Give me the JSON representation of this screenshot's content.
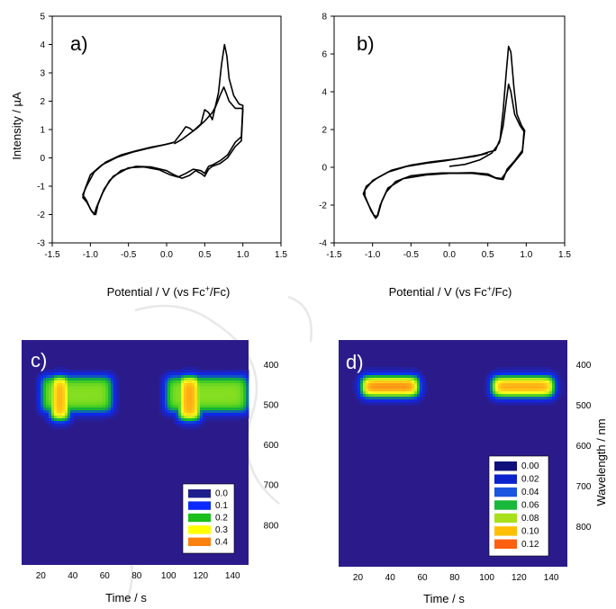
{
  "chart_data": [
    {
      "id": "a",
      "type": "line",
      "panel_label": "a)",
      "xlabel": "",
      "ylabel": "Intensity / µA",
      "xlim": [
        -1.5,
        1.5
      ],
      "ylim": [
        -3,
        5
      ],
      "xticks": [
        "-1.5",
        "-1.0",
        "-0.5",
        "0.0",
        "0.5",
        "1.0",
        "1.5"
      ],
      "xtick_values": [
        -1.5,
        -1.0,
        -0.5,
        0.0,
        0.5,
        1.0,
        1.5
      ],
      "yticks": [
        "-3",
        "-2",
        "-1",
        "0",
        "1",
        "2",
        "3",
        "4",
        "5"
      ],
      "ytick_values": [
        -3,
        -2,
        -1,
        0,
        1,
        2,
        3,
        4,
        5
      ],
      "series": [
        {
          "values": [
            [
              0.1,
              0.5
            ],
            [
              0.2,
              0.65
            ],
            [
              0.3,
              0.85
            ],
            [
              0.4,
              1.05
            ],
            [
              0.5,
              1.3
            ],
            [
              0.6,
              1.6
            ],
            [
              0.65,
              1.85
            ],
            [
              0.7,
              2.2
            ],
            [
              0.75,
              2.5
            ],
            [
              0.78,
              2.3
            ],
            [
              0.82,
              2.0
            ],
            [
              0.9,
              1.75
            ],
            [
              0.98,
              1.75
            ],
            [
              1.0,
              1.7
            ],
            [
              0.98,
              0.6
            ],
            [
              0.9,
              0.4
            ],
            [
              0.8,
              0.0
            ],
            [
              0.7,
              -0.2
            ],
            [
              0.6,
              -0.3
            ],
            [
              0.55,
              -0.4
            ],
            [
              0.5,
              -0.65
            ],
            [
              0.45,
              -0.55
            ],
            [
              0.38,
              -0.45
            ],
            [
              0.3,
              -0.62
            ],
            [
              0.2,
              -0.72
            ],
            [
              0.1,
              -0.6
            ],
            [
              0.0,
              -0.45
            ],
            [
              -0.2,
              -0.32
            ],
            [
              -0.4,
              -0.3
            ],
            [
              -0.6,
              -0.45
            ],
            [
              -0.75,
              -0.8
            ],
            [
              -0.85,
              -1.3
            ],
            [
              -0.92,
              -1.75
            ],
            [
              -0.95,
              -2.0
            ],
            [
              -1.0,
              -1.8
            ],
            [
              -1.05,
              -1.5
            ],
            [
              -1.1,
              -1.3
            ],
            [
              -1.05,
              -1.0
            ],
            [
              -0.95,
              -0.5
            ],
            [
              -0.8,
              -0.15
            ],
            [
              -0.6,
              0.1
            ],
            [
              -0.4,
              0.25
            ],
            [
              -0.2,
              0.38
            ],
            [
              0.0,
              0.48
            ],
            [
              0.1,
              0.55
            ]
          ]
        },
        {
          "values": [
            [
              0.1,
              0.55
            ],
            [
              0.2,
              0.9
            ],
            [
              0.25,
              1.1
            ],
            [
              0.3,
              1.05
            ],
            [
              0.35,
              0.95
            ],
            [
              0.45,
              1.2
            ],
            [
              0.5,
              1.7
            ],
            [
              0.55,
              1.6
            ],
            [
              0.6,
              1.35
            ],
            [
              0.68,
              2.3
            ],
            [
              0.72,
              3.3
            ],
            [
              0.76,
              4.0
            ],
            [
              0.79,
              3.6
            ],
            [
              0.82,
              2.8
            ],
            [
              0.88,
              2.2
            ],
            [
              0.95,
              1.9
            ],
            [
              1.0,
              1.85
            ],
            [
              0.98,
              0.75
            ],
            [
              0.9,
              0.55
            ],
            [
              0.8,
              0.1
            ],
            [
              0.7,
              -0.1
            ],
            [
              0.6,
              -0.25
            ],
            [
              0.55,
              -0.3
            ],
            [
              0.5,
              -0.55
            ],
            [
              0.45,
              -0.45
            ],
            [
              0.35,
              -0.4
            ],
            [
              0.25,
              -0.55
            ],
            [
              0.15,
              -0.68
            ],
            [
              0.05,
              -0.6
            ],
            [
              -0.1,
              -0.42
            ],
            [
              -0.3,
              -0.32
            ],
            [
              -0.5,
              -0.35
            ],
            [
              -0.7,
              -0.65
            ],
            [
              -0.82,
              -1.1
            ],
            [
              -0.9,
              -1.65
            ],
            [
              -0.93,
              -2.0
            ],
            [
              -0.98,
              -1.9
            ],
            [
              -1.05,
              -1.55
            ],
            [
              -1.1,
              -1.4
            ],
            [
              -1.07,
              -1.1
            ],
            [
              -1.0,
              -0.6
            ],
            [
              -0.85,
              -0.25
            ],
            [
              -0.65,
              0.02
            ],
            [
              -0.45,
              0.2
            ],
            [
              -0.25,
              0.33
            ],
            [
              -0.05,
              0.45
            ],
            [
              0.1,
              0.55
            ]
          ]
        }
      ]
    },
    {
      "id": "b",
      "type": "line",
      "panel_label": "b)",
      "xlabel": "",
      "ylabel": "",
      "xlim": [
        -1.5,
        1.5
      ],
      "ylim": [
        -4,
        8
      ],
      "xticks": [
        "-1.5",
        "-1.0",
        "-0.5",
        "0.0",
        "0.5",
        "1.0",
        "1.5"
      ],
      "xtick_values": [
        -1.5,
        -1.0,
        -0.5,
        0.0,
        0.5,
        1.0,
        1.5
      ],
      "yticks": [
        "-4",
        "-2",
        "0",
        "2",
        "4",
        "6",
        "8"
      ],
      "ytick_values": [
        -4,
        -2,
        0,
        2,
        4,
        6,
        8
      ],
      "series": [
        {
          "values": [
            [
              0.0,
              0.05
            ],
            [
              0.2,
              0.15
            ],
            [
              0.4,
              0.4
            ],
            [
              0.55,
              0.75
            ],
            [
              0.65,
              1.3
            ],
            [
              0.7,
              2.2
            ],
            [
              0.74,
              3.5
            ],
            [
              0.77,
              4.4
            ],
            [
              0.8,
              4.0
            ],
            [
              0.85,
              2.8
            ],
            [
              0.92,
              2.2
            ],
            [
              0.97,
              1.9
            ],
            [
              0.95,
              0.8
            ],
            [
              0.85,
              0.3
            ],
            [
              0.75,
              -0.2
            ],
            [
              0.68,
              -0.6
            ],
            [
              0.6,
              -0.55
            ],
            [
              0.5,
              -0.35
            ],
            [
              0.3,
              -0.28
            ],
            [
              0.1,
              -0.3
            ],
            [
              -0.1,
              -0.3
            ],
            [
              -0.3,
              -0.35
            ],
            [
              -0.5,
              -0.45
            ],
            [
              -0.7,
              -0.75
            ],
            [
              -0.82,
              -1.3
            ],
            [
              -0.9,
              -2.0
            ],
            [
              -0.94,
              -2.6
            ],
            [
              -0.98,
              -2.55
            ],
            [
              -1.05,
              -2.0
            ],
            [
              -1.12,
              -1.4
            ],
            [
              -1.08,
              -1.0
            ],
            [
              -0.95,
              -0.6
            ],
            [
              -0.75,
              -0.15
            ],
            [
              -0.5,
              0.12
            ],
            [
              -0.25,
              0.28
            ],
            [
              0.0,
              0.4
            ],
            [
              0.2,
              0.5
            ],
            [
              0.35,
              0.6
            ],
            [
              0.5,
              0.75
            ]
          ]
        },
        {
          "values": [
            [
              0.5,
              0.8
            ],
            [
              0.6,
              0.9
            ],
            [
              0.66,
              1.5
            ],
            [
              0.7,
              3.0
            ],
            [
              0.74,
              5.0
            ],
            [
              0.77,
              6.4
            ],
            [
              0.8,
              6.1
            ],
            [
              0.84,
              4.2
            ],
            [
              0.88,
              2.8
            ],
            [
              0.94,
              2.2
            ],
            [
              0.98,
              1.95
            ],
            [
              0.95,
              0.9
            ],
            [
              0.85,
              0.35
            ],
            [
              0.75,
              -0.1
            ],
            [
              0.7,
              -0.65
            ],
            [
              0.62,
              -0.6
            ],
            [
              0.5,
              -0.42
            ],
            [
              0.3,
              -0.32
            ],
            [
              0.0,
              -0.32
            ],
            [
              -0.3,
              -0.4
            ],
            [
              -0.6,
              -0.6
            ],
            [
              -0.8,
              -1.1
            ],
            [
              -0.88,
              -1.8
            ],
            [
              -0.93,
              -2.55
            ],
            [
              -0.96,
              -2.7
            ],
            [
              -1.02,
              -2.3
            ],
            [
              -1.1,
              -1.5
            ],
            [
              -1.1,
              -1.2
            ],
            [
              -1.0,
              -0.7
            ],
            [
              -0.8,
              -0.25
            ],
            [
              -0.55,
              0.05
            ],
            [
              -0.3,
              0.22
            ],
            [
              -0.05,
              0.35
            ],
            [
              0.2,
              0.52
            ],
            [
              0.4,
              0.66
            ],
            [
              0.5,
              0.8
            ]
          ]
        }
      ]
    },
    {
      "id": "c",
      "type": "heatmap",
      "panel_label": "c)",
      "xlabel": "Time / s",
      "ylabel": "",
      "xlim": [
        8,
        150
      ],
      "ylim": [
        340,
        900
      ],
      "xticks": [
        "20",
        "40",
        "60",
        "80",
        "100",
        "120",
        "140"
      ],
      "xtick_values": [
        20,
        40,
        60,
        80,
        100,
        120,
        140
      ],
      "yticks": [
        "400",
        "500",
        "600",
        "700",
        "800"
      ],
      "ytick_values": [
        400,
        500,
        600,
        700,
        800
      ],
      "colorscale": [
        "#2b1b8a",
        "#0a2cff",
        "#15c026",
        "#ffff1a",
        "#ff7a12"
      ],
      "legend": [
        "0.0",
        "0.1",
        "0.2",
        "0.3",
        "0.4"
      ],
      "legend_colors": [
        "#1f1f8c",
        "#0b28ff",
        "#1cbf1c",
        "#ffff00",
        "#ff7f10"
      ],
      "vmax": 0.45,
      "blobs": [
        {
          "t0": 20,
          "t1": 65,
          "w0": 430,
          "w1": 520,
          "peak": 0.28
        },
        {
          "t0": 26,
          "t1": 38,
          "w0": 430,
          "w1": 540,
          "peak": 0.42
        },
        {
          "t0": 98,
          "t1": 150,
          "w0": 430,
          "w1": 520,
          "peak": 0.28
        },
        {
          "t0": 106,
          "t1": 120,
          "w0": 430,
          "w1": 540,
          "peak": 0.42
        }
      ]
    },
    {
      "id": "d",
      "type": "heatmap",
      "panel_label": "d)",
      "xlabel": "Time / s",
      "ylabel": "Wavelength / nm",
      "xlim": [
        8,
        150
      ],
      "ylim": [
        340,
        900
      ],
      "xticks": [
        "20",
        "40",
        "60",
        "80",
        "100",
        "120",
        "140"
      ],
      "xtick_values": [
        20,
        40,
        60,
        80,
        100,
        120,
        140
      ],
      "yticks": [
        "400",
        "500",
        "600",
        "700",
        "800"
      ],
      "ytick_values": [
        400,
        500,
        600,
        700,
        800
      ],
      "colorscale": [
        "#2b1b8a",
        "#0a2cff",
        "#15c026",
        "#ffff1a",
        "#ff5a12"
      ],
      "legend": [
        "0.00",
        "0.02",
        "0.04",
        "0.06",
        "0.08",
        "0.10",
        "0.12"
      ],
      "legend_colors": [
        "#10107a",
        "#0b22cc",
        "#1a55e0",
        "#18b83a",
        "#a8e01c",
        "#ffbf00",
        "#ff5f10"
      ],
      "vmax": 0.13,
      "blobs": [
        {
          "t0": 22,
          "t1": 58,
          "w0": 430,
          "w1": 480,
          "peak": 0.125
        },
        {
          "t0": 103,
          "t1": 142,
          "w0": 430,
          "w1": 480,
          "peak": 0.12
        }
      ]
    }
  ],
  "shared": {
    "cv_xlabel_prefix": "Potential / V (vs Fc",
    "cv_xlabel_sup": "+",
    "cv_xlabel_suffix": "/Fc)"
  }
}
